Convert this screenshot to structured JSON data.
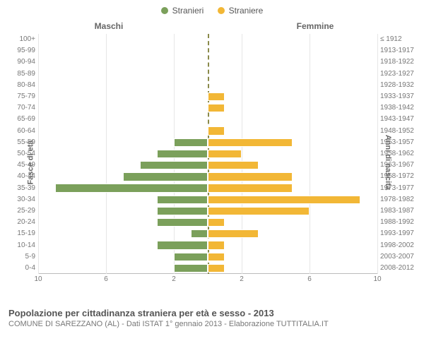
{
  "legend": {
    "male": {
      "label": "Stranieri",
      "color": "#7ba05b"
    },
    "female": {
      "label": "Straniere",
      "color": "#f2b736"
    }
  },
  "headers": {
    "left": "Maschi",
    "right": "Femmine"
  },
  "axis": {
    "left_title": "Fasce di età",
    "right_title": "Anni di nascita"
  },
  "caption": {
    "title": "Popolazione per cittadinanza straniera per età e sesso - 2013",
    "subtitle": "COMUNE DI SAREZZANO (AL) - Dati ISTAT 1° gennaio 2013 - Elaborazione TUTTITALIA.IT"
  },
  "chart": {
    "type": "pyramid-bar",
    "xlim": 10,
    "xticks_left": [
      10,
      6,
      2
    ],
    "xticks_right": [
      2,
      6,
      10
    ],
    "grid_color": "#e6e6e6",
    "center_line_color": "#8a8a4a",
    "background_color": "#ffffff",
    "bar_border": "#ffffff",
    "label_fontsize": 10,
    "header_fontsize": 12,
    "rows": [
      {
        "age": "100+",
        "birth": "≤ 1912",
        "m": 0,
        "f": 0
      },
      {
        "age": "95-99",
        "birth": "1913-1917",
        "m": 0,
        "f": 0
      },
      {
        "age": "90-94",
        "birth": "1918-1922",
        "m": 0,
        "f": 0
      },
      {
        "age": "85-89",
        "birth": "1923-1927",
        "m": 0,
        "f": 0
      },
      {
        "age": "80-84",
        "birth": "1928-1932",
        "m": 0,
        "f": 0
      },
      {
        "age": "75-79",
        "birth": "1933-1937",
        "m": 0,
        "f": 1
      },
      {
        "age": "70-74",
        "birth": "1938-1942",
        "m": 0,
        "f": 1
      },
      {
        "age": "65-69",
        "birth": "1943-1947",
        "m": 0,
        "f": 0
      },
      {
        "age": "60-64",
        "birth": "1948-1952",
        "m": 0,
        "f": 1
      },
      {
        "age": "55-59",
        "birth": "1953-1957",
        "m": 2,
        "f": 5
      },
      {
        "age": "50-54",
        "birth": "1958-1962",
        "m": 3,
        "f": 2
      },
      {
        "age": "45-49",
        "birth": "1963-1967",
        "m": 4,
        "f": 3
      },
      {
        "age": "40-44",
        "birth": "1968-1972",
        "m": 5,
        "f": 5
      },
      {
        "age": "35-39",
        "birth": "1973-1977",
        "m": 9,
        "f": 5
      },
      {
        "age": "30-34",
        "birth": "1978-1982",
        "m": 3,
        "f": 9
      },
      {
        "age": "25-29",
        "birth": "1983-1987",
        "m": 3,
        "f": 6
      },
      {
        "age": "20-24",
        "birth": "1988-1992",
        "m": 3,
        "f": 1
      },
      {
        "age": "15-19",
        "birth": "1993-1997",
        "m": 1,
        "f": 3
      },
      {
        "age": "10-14",
        "birth": "1998-2002",
        "m": 3,
        "f": 1
      },
      {
        "age": "5-9",
        "birth": "2003-2007",
        "m": 2,
        "f": 1
      },
      {
        "age": "0-4",
        "birth": "2008-2012",
        "m": 2,
        "f": 1
      }
    ]
  }
}
